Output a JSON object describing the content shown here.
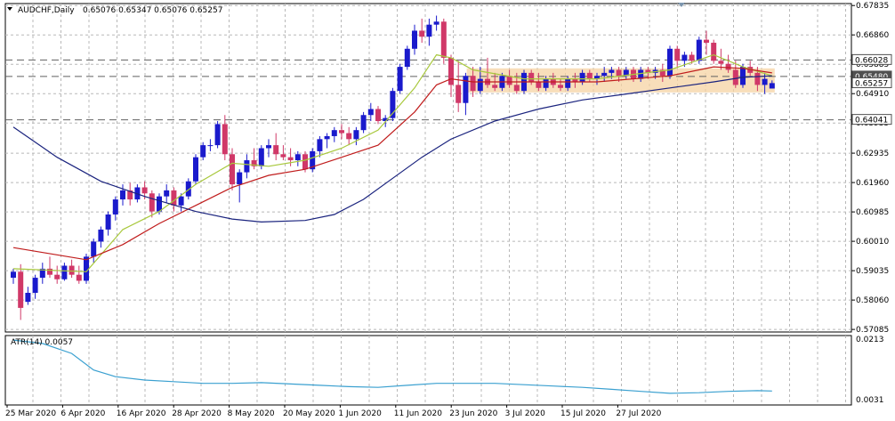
{
  "header": {
    "symbol": "AUDCHF,Daily",
    "ohlc": "0.65076 0.65347 0.65076 0.65257"
  },
  "atr": {
    "label": "ATR(14) 0.0057",
    "axis_ticks": [
      "0.0213",
      "0.0031"
    ]
  },
  "price_axis_ticks": [
    "0.67835",
    "0.66860",
    "0.65885",
    "0.64910",
    "0.63935",
    "0.62935",
    "0.61960",
    "0.60985",
    "0.60010",
    "0.59035",
    "0.58060",
    "0.57085"
  ],
  "price_level_labels": [
    {
      "text": "0.66028",
      "level": 0.66028,
      "style": "box"
    },
    {
      "text": "0.65480",
      "level": 0.6548,
      "style": "dark"
    },
    {
      "text": "0.65257",
      "level": 0.65257,
      "style": "box"
    },
    {
      "text": "0.64041",
      "level": 0.64041,
      "style": "box"
    }
  ],
  "x_axis_labels": [
    "25 Mar 2020",
    "6 Apr 2020",
    "16 Apr 2020",
    "28 Apr 2020",
    "8 May 2020",
    "20 May 2020",
    "1 Jun 2020",
    "11 Jun 2020",
    "23 Jun 2020",
    "3 Jul 2020",
    "15 Jul 2020",
    "27 Jul 2020"
  ],
  "colors": {
    "bull": "#1a1acc",
    "bear": "#d03868",
    "ma_fast": "#a8c83c",
    "ma_mid": "#c01c1c",
    "ma_slow": "#1a237e",
    "atr_line": "#3aa0d0",
    "zone": "#f5d3a3"
  },
  "chart_data": {
    "type": "candlestick",
    "title": "AUDCHF,Daily",
    "ylim": [
      0.57,
      0.679
    ],
    "grid": true,
    "horizontal_lines": [
      0.66028,
      0.6548,
      0.64041
    ],
    "zone": {
      "from_bar": 63,
      "to_bar": 104,
      "low": 0.6495,
      "high": 0.6575
    },
    "candles": [
      [
        0.588,
        0.591,
        0.586,
        0.59
      ],
      [
        0.59,
        0.5925,
        0.574,
        0.578
      ],
      [
        0.58,
        0.585,
        0.579,
        0.583
      ],
      [
        0.583,
        0.589,
        0.581,
        0.588
      ],
      [
        0.588,
        0.593,
        0.586,
        0.591
      ],
      [
        0.591,
        0.595,
        0.588,
        0.589
      ],
      [
        0.589,
        0.592,
        0.586,
        0.5875
      ],
      [
        0.5875,
        0.593,
        0.587,
        0.592
      ],
      [
        0.592,
        0.594,
        0.588,
        0.589
      ],
      [
        0.589,
        0.592,
        0.586,
        0.587
      ],
      [
        0.587,
        0.596,
        0.586,
        0.595
      ],
      [
        0.595,
        0.601,
        0.593,
        0.6
      ],
      [
        0.6,
        0.605,
        0.598,
        0.604
      ],
      [
        0.604,
        0.61,
        0.602,
        0.609
      ],
      [
        0.609,
        0.615,
        0.607,
        0.614
      ],
      [
        0.614,
        0.619,
        0.612,
        0.617
      ],
      [
        0.617,
        0.6195,
        0.612,
        0.614
      ],
      [
        0.614,
        0.619,
        0.613,
        0.618
      ],
      [
        0.618,
        0.62,
        0.614,
        0.616
      ],
      [
        0.616,
        0.617,
        0.608,
        0.61
      ],
      [
        0.61,
        0.616,
        0.609,
        0.615
      ],
      [
        0.615,
        0.619,
        0.613,
        0.617
      ],
      [
        0.617,
        0.618,
        0.61,
        0.612
      ],
      [
        0.612,
        0.616,
        0.61,
        0.615
      ],
      [
        0.615,
        0.621,
        0.614,
        0.62
      ],
      [
        0.62,
        0.629,
        0.619,
        0.628
      ],
      [
        0.628,
        0.633,
        0.627,
        0.632
      ],
      [
        0.632,
        0.634,
        0.63,
        0.632
      ],
      [
        0.632,
        0.64,
        0.631,
        0.639
      ],
      [
        0.639,
        0.642,
        0.627,
        0.629
      ],
      [
        0.629,
        0.631,
        0.617,
        0.619
      ],
      [
        0.619,
        0.624,
        0.613,
        0.623
      ],
      [
        0.623,
        0.629,
        0.621,
        0.627
      ],
      [
        0.627,
        0.631,
        0.624,
        0.625
      ],
      [
        0.625,
        0.632,
        0.624,
        0.631
      ],
      [
        0.631,
        0.634,
        0.628,
        0.632
      ],
      [
        0.632,
        0.636,
        0.627,
        0.629
      ],
      [
        0.629,
        0.632,
        0.627,
        0.628
      ],
      [
        0.628,
        0.631,
        0.625,
        0.627
      ],
      [
        0.627,
        0.63,
        0.625,
        0.629
      ],
      [
        0.629,
        0.63,
        0.623,
        0.624
      ],
      [
        0.624,
        0.631,
        0.623,
        0.63
      ],
      [
        0.63,
        0.635,
        0.628,
        0.634
      ],
      [
        0.634,
        0.636,
        0.631,
        0.635
      ],
      [
        0.635,
        0.638,
        0.633,
        0.637
      ],
      [
        0.637,
        0.639,
        0.634,
        0.636
      ],
      [
        0.636,
        0.638,
        0.632,
        0.634
      ],
      [
        0.634,
        0.638,
        0.632,
        0.637
      ],
      [
        0.637,
        0.643,
        0.636,
        0.642
      ],
      [
        0.642,
        0.646,
        0.64,
        0.644
      ],
      [
        0.644,
        0.645,
        0.639,
        0.64
      ],
      [
        0.64,
        0.642,
        0.638,
        0.641
      ],
      [
        0.641,
        0.651,
        0.64,
        0.65
      ],
      [
        0.65,
        0.659,
        0.649,
        0.658
      ],
      [
        0.658,
        0.665,
        0.657,
        0.664
      ],
      [
        0.664,
        0.672,
        0.662,
        0.67
      ],
      [
        0.67,
        0.674,
        0.666,
        0.668
      ],
      [
        0.668,
        0.674,
        0.665,
        0.672
      ],
      [
        0.672,
        0.675,
        0.67,
        0.673
      ],
      [
        0.673,
        0.674,
        0.659,
        0.661
      ],
      [
        0.661,
        0.662,
        0.648,
        0.652
      ],
      [
        0.652,
        0.66,
        0.643,
        0.646
      ],
      [
        0.646,
        0.656,
        0.642,
        0.655
      ],
      [
        0.655,
        0.658,
        0.648,
        0.65
      ],
      [
        0.65,
        0.658,
        0.649,
        0.654
      ],
      [
        0.654,
        0.661,
        0.651,
        0.652
      ],
      [
        0.652,
        0.656,
        0.65,
        0.651
      ],
      [
        0.651,
        0.656,
        0.65,
        0.655
      ],
      [
        0.655,
        0.657,
        0.651,
        0.652
      ],
      [
        0.652,
        0.656,
        0.649,
        0.65
      ],
      [
        0.65,
        0.657,
        0.649,
        0.656
      ],
      [
        0.656,
        0.657,
        0.652,
        0.653
      ],
      [
        0.653,
        0.656,
        0.65,
        0.651
      ],
      [
        0.651,
        0.655,
        0.65,
        0.654
      ],
      [
        0.654,
        0.656,
        0.651,
        0.652
      ],
      [
        0.652,
        0.654,
        0.65,
        0.651
      ],
      [
        0.651,
        0.655,
        0.65,
        0.654
      ],
      [
        0.654,
        0.656,
        0.651,
        0.653
      ],
      [
        0.653,
        0.657,
        0.652,
        0.656
      ],
      [
        0.656,
        0.657,
        0.653,
        0.654
      ],
      [
        0.654,
        0.656,
        0.652,
        0.655
      ],
      [
        0.655,
        0.658,
        0.653,
        0.656
      ],
      [
        0.656,
        0.658,
        0.654,
        0.657
      ],
      [
        0.657,
        0.658,
        0.653,
        0.655
      ],
      [
        0.655,
        0.658,
        0.654,
        0.657
      ],
      [
        0.657,
        0.658,
        0.653,
        0.654
      ],
      [
        0.654,
        0.658,
        0.653,
        0.657
      ],
      [
        0.657,
        0.658,
        0.654,
        0.656
      ],
      [
        0.656,
        0.658,
        0.654,
        0.657
      ],
      [
        0.657,
        0.659,
        0.653,
        0.655
      ],
      [
        0.655,
        0.665,
        0.654,
        0.664
      ],
      [
        0.664,
        0.665,
        0.658,
        0.66
      ],
      [
        0.66,
        0.663,
        0.658,
        0.662
      ],
      [
        0.662,
        0.663,
        0.659,
        0.66
      ],
      [
        0.66,
        0.668,
        0.659,
        0.667
      ],
      [
        0.667,
        0.67,
        0.662,
        0.666
      ],
      [
        0.666,
        0.667,
        0.659,
        0.66
      ],
      [
        0.66,
        0.664,
        0.657,
        0.659
      ],
      [
        0.659,
        0.662,
        0.656,
        0.657
      ],
      [
        0.657,
        0.66,
        0.651,
        0.652
      ],
      [
        0.652,
        0.659,
        0.651,
        0.658
      ],
      [
        0.658,
        0.66,
        0.655,
        0.656
      ],
      [
        0.656,
        0.658,
        0.65,
        0.652
      ],
      [
        0.652,
        0.656,
        0.649,
        0.654
      ],
      [
        0.6508,
        0.6535,
        0.6508,
        0.6526
      ]
    ],
    "series": [
      {
        "key": "ma_fast",
        "values": [
          [
            0,
            0.591
          ],
          [
            10,
            0.59
          ],
          [
            15,
            0.604
          ],
          [
            20,
            0.61
          ],
          [
            25,
            0.619
          ],
          [
            30,
            0.626
          ],
          [
            35,
            0.625
          ],
          [
            40,
            0.627
          ],
          [
            45,
            0.631
          ],
          [
            50,
            0.637
          ],
          [
            55,
            0.651
          ],
          [
            58,
            0.662
          ],
          [
            60,
            0.661
          ],
          [
            63,
            0.657
          ],
          [
            70,
            0.654
          ],
          [
            80,
            0.654
          ],
          [
            90,
            0.657
          ],
          [
            96,
            0.662
          ],
          [
            100,
            0.658
          ],
          [
            104,
            0.655
          ]
        ]
      },
      {
        "key": "ma_mid",
        "values": [
          [
            0,
            0.598
          ],
          [
            10,
            0.594
          ],
          [
            15,
            0.599
          ],
          [
            20,
            0.606
          ],
          [
            25,
            0.612
          ],
          [
            30,
            0.618
          ],
          [
            35,
            0.622
          ],
          [
            40,
            0.624
          ],
          [
            45,
            0.628
          ],
          [
            50,
            0.632
          ],
          [
            55,
            0.643
          ],
          [
            58,
            0.652
          ],
          [
            60,
            0.654
          ],
          [
            63,
            0.653
          ],
          [
            70,
            0.653
          ],
          [
            80,
            0.653
          ],
          [
            90,
            0.655
          ],
          [
            96,
            0.658
          ],
          [
            100,
            0.6575
          ],
          [
            104,
            0.656
          ]
        ]
      },
      {
        "key": "ma_slow",
        "values": [
          [
            0,
            0.638
          ],
          [
            6,
            0.628
          ],
          [
            12,
            0.62
          ],
          [
            18,
            0.615
          ],
          [
            25,
            0.61
          ],
          [
            30,
            0.6075
          ],
          [
            34,
            0.6065
          ],
          [
            40,
            0.607
          ],
          [
            44,
            0.609
          ],
          [
            48,
            0.614
          ],
          [
            52,
            0.621
          ],
          [
            56,
            0.628
          ],
          [
            60,
            0.634
          ],
          [
            66,
            0.64
          ],
          [
            72,
            0.644
          ],
          [
            78,
            0.647
          ],
          [
            84,
            0.649
          ],
          [
            90,
            0.651
          ],
          [
            96,
            0.653
          ],
          [
            100,
            0.6545
          ],
          [
            104,
            0.655
          ]
        ]
      },
      {
        "key": "atr",
        "values": [
          [
            0,
            0.021
          ],
          [
            4,
            0.02
          ],
          [
            8,
            0.017
          ],
          [
            11,
            0.012
          ],
          [
            14,
            0.01
          ],
          [
            18,
            0.009
          ],
          [
            22,
            0.0085
          ],
          [
            26,
            0.008
          ],
          [
            30,
            0.008
          ],
          [
            34,
            0.0082
          ],
          [
            38,
            0.0078
          ],
          [
            42,
            0.0074
          ],
          [
            46,
            0.007
          ],
          [
            50,
            0.0068
          ],
          [
            54,
            0.0074
          ],
          [
            58,
            0.008
          ],
          [
            62,
            0.008
          ],
          [
            66,
            0.008
          ],
          [
            70,
            0.0076
          ],
          [
            74,
            0.0072
          ],
          [
            78,
            0.0068
          ],
          [
            82,
            0.0062
          ],
          [
            86,
            0.0056
          ],
          [
            90,
            0.005
          ],
          [
            94,
            0.0052
          ],
          [
            98,
            0.0056
          ],
          [
            102,
            0.0058
          ],
          [
            104,
            0.0057
          ]
        ]
      }
    ],
    "atr_ylim": [
      0.0031,
      0.0213
    ]
  }
}
